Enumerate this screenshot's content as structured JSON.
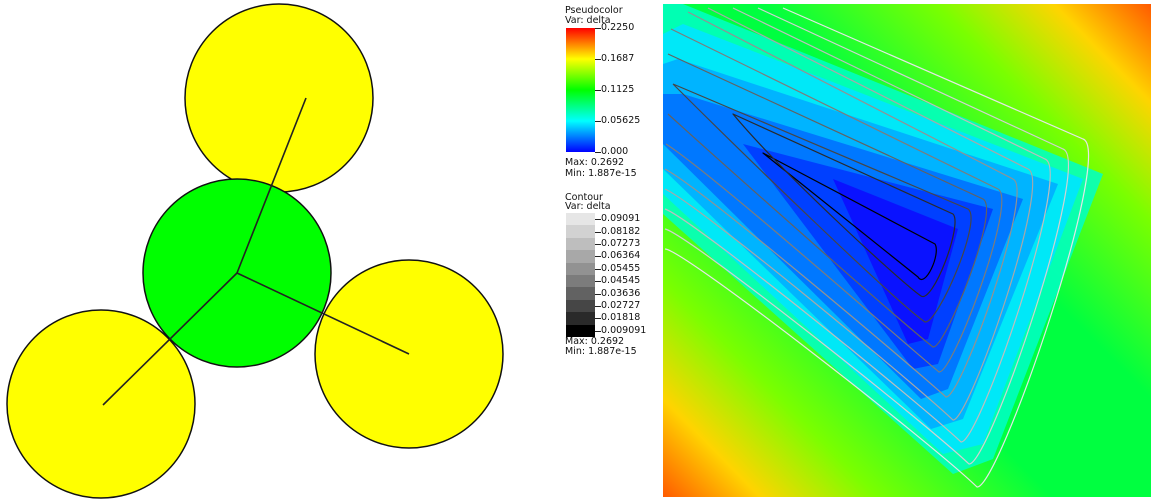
{
  "pseudocolor_legend": {
    "title": "Pseudocolor",
    "var_label": "Var: delta",
    "ticks": [
      "0.2250",
      "0.1687",
      "0.1125",
      "0.05625",
      "0.000"
    ],
    "max_label": "Max: 0.2692",
    "min_label": "Min: 1.887e-15",
    "gradient_colors": [
      "#ff0000",
      "#ffff00",
      "#00ff00",
      "#00ffff",
      "#0000ff"
    ]
  },
  "contour_legend": {
    "title": "Contour",
    "var_label": "Var: delta",
    "levels": [
      {
        "label": "0.09091",
        "color": "#e6e6e6"
      },
      {
        "label": "0.08182",
        "color": "#d2d2d2"
      },
      {
        "label": "0.07273",
        "color": "#bebebe"
      },
      {
        "label": "0.06364",
        "color": "#a8a8a8"
      },
      {
        "label": "0.05455",
        "color": "#929292"
      },
      {
        "label": "0.04545",
        "color": "#7c7c7c"
      },
      {
        "label": "0.03636",
        "color": "#626262"
      },
      {
        "label": "0.02727",
        "color": "#464646"
      },
      {
        "label": "0.01818",
        "color": "#2a2a2a"
      },
      {
        "label": "0.009091",
        "color": "#000000"
      }
    ],
    "max_label": "Max: 0.2692",
    "min_label": "Min: 1.887e-15"
  },
  "chart_data": [
    {
      "type": "diagram",
      "description_free": true,
      "circles": [
        {
          "name": "top",
          "color": "#ffff00"
        },
        {
          "name": "center",
          "color": "#00ff00"
        },
        {
          "name": "right",
          "color": "#ffff00"
        },
        {
          "name": "bottom-left",
          "color": "#ffff00"
        }
      ]
    },
    {
      "type": "heatmap",
      "colorbar_range": [
        0.0,
        0.225
      ],
      "data_range": [
        1.887e-15,
        0.2692
      ],
      "contour_levels": [
        0.009091,
        0.01818,
        0.02727,
        0.03636,
        0.04545,
        0.05455,
        0.06364,
        0.07273,
        0.08182,
        0.09091
      ]
    }
  ]
}
